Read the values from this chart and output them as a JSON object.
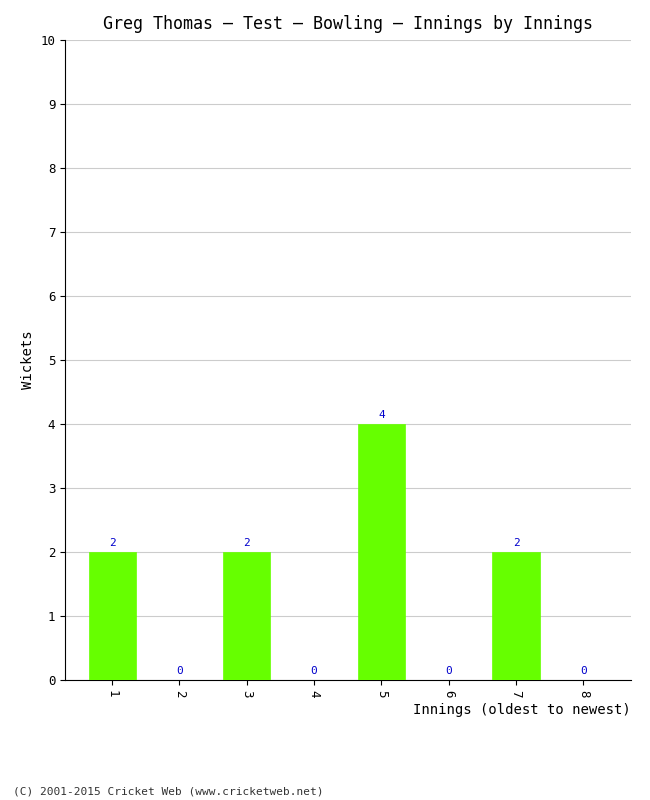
{
  "title": "Greg Thomas – Test – Bowling – Innings by Innings",
  "xlabel": "Innings (oldest to newest)",
  "ylabel": "Wickets",
  "categories": [
    "1",
    "2",
    "3",
    "4",
    "5",
    "6",
    "7",
    "8"
  ],
  "values": [
    2,
    0,
    2,
    0,
    4,
    0,
    2,
    0
  ],
  "bar_color": "#66ff00",
  "bar_edge_color": "#66ff00",
  "label_color": "#0000cc",
  "ylim": [
    0,
    10
  ],
  "yticks": [
    0,
    1,
    2,
    3,
    4,
    5,
    6,
    7,
    8,
    9,
    10
  ],
  "background_color": "#ffffff",
  "grid_color": "#cccccc",
  "title_fontsize": 12,
  "axis_label_fontsize": 10,
  "tick_fontsize": 9,
  "label_fontsize": 8,
  "footer": "(C) 2001-2015 Cricket Web (www.cricketweb.net)"
}
